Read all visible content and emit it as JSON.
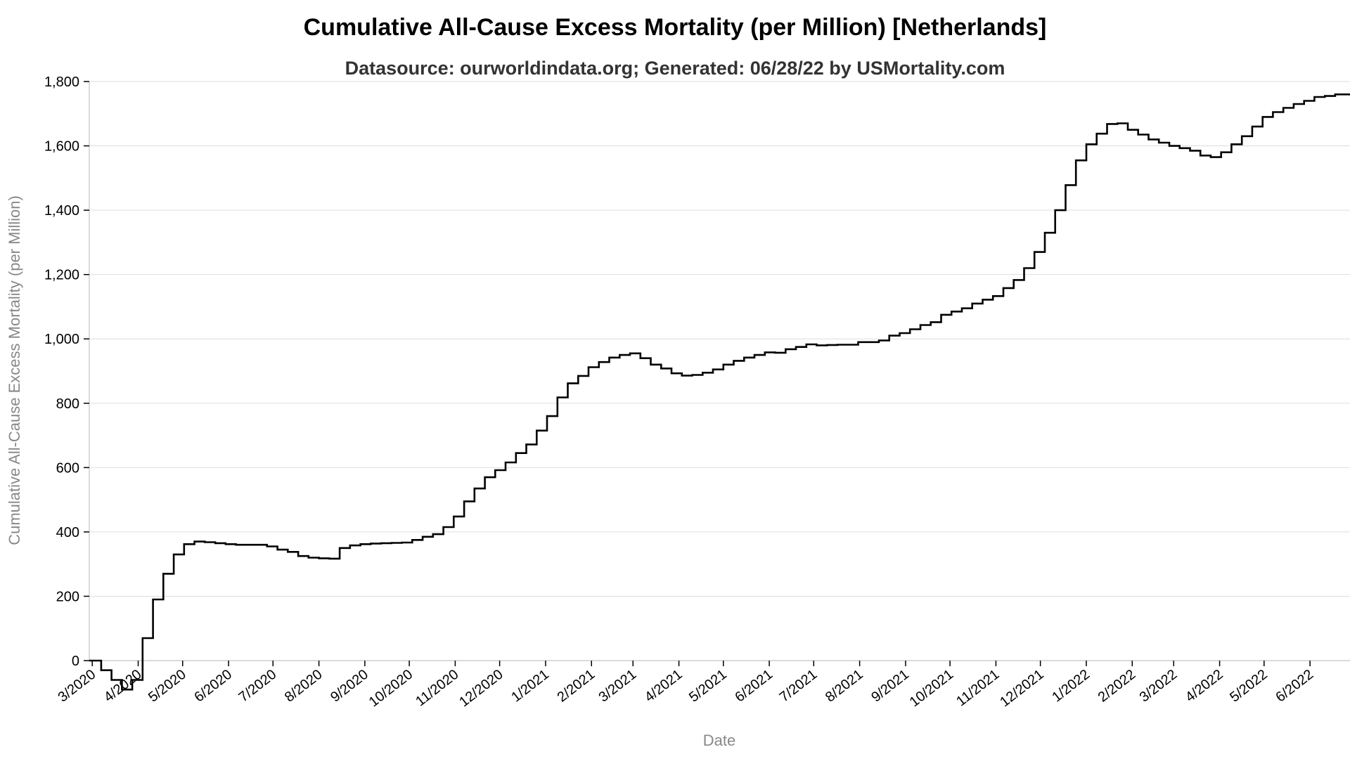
{
  "chart_data": {
    "type": "line",
    "title": "Cumulative All-Cause Excess Mortality (per Million) [Netherlands]",
    "subtitle": "Datasource: ourworldindata.org; Generated: 06/28/22 by USMortality.com",
    "xlabel": "Date",
    "ylabel": "Cumulative All-Cause Excess Mortality (per Million)",
    "ylim": [
      0,
      1800
    ],
    "yticks": [
      0,
      200,
      400,
      600,
      800,
      1000,
      1200,
      1400,
      1600,
      1800
    ],
    "ytick_labels": [
      "0",
      "200",
      "400",
      "600",
      "800",
      "1,000",
      "1,200",
      "1,400",
      "1,600",
      "1,800"
    ],
    "xlim": [
      "2020-02-28",
      "2022-06-28"
    ],
    "xticks": [
      "2020-03-01",
      "2020-04-01",
      "2020-05-01",
      "2020-06-01",
      "2020-07-01",
      "2020-08-01",
      "2020-09-01",
      "2020-10-01",
      "2020-11-01",
      "2020-12-01",
      "2021-01-01",
      "2021-02-01",
      "2021-03-01",
      "2021-04-01",
      "2021-05-01",
      "2021-06-01",
      "2021-07-01",
      "2021-08-01",
      "2021-09-01",
      "2021-10-01",
      "2021-11-01",
      "2021-12-01",
      "2022-01-01",
      "2022-02-01",
      "2022-03-01",
      "2022-04-01",
      "2022-05-01",
      "2022-06-01"
    ],
    "xtick_labels": [
      "3/2020",
      "4/2020",
      "5/2020",
      "6/2020",
      "7/2020",
      "8/2020",
      "9/2020",
      "10/2020",
      "11/2020",
      "12/2020",
      "1/2021",
      "2/2021",
      "3/2021",
      "4/2021",
      "5/2021",
      "6/2021",
      "7/2021",
      "8/2021",
      "9/2021",
      "10/2021",
      "11/2021",
      "12/2021",
      "1/2022",
      "2/2022",
      "3/2022",
      "4/2022",
      "5/2022",
      "6/2022"
    ],
    "step": true,
    "grid": true,
    "series": [
      {
        "color": "#000000",
        "x": [
          "2020-02-28",
          "2020-03-07",
          "2020-03-14",
          "2020-03-21",
          "2020-03-28",
          "2020-04-04",
          "2020-04-11",
          "2020-04-18",
          "2020-04-25",
          "2020-05-02",
          "2020-05-09",
          "2020-05-16",
          "2020-05-23",
          "2020-05-30",
          "2020-06-06",
          "2020-06-13",
          "2020-06-20",
          "2020-06-27",
          "2020-07-04",
          "2020-07-11",
          "2020-07-18",
          "2020-07-25",
          "2020-08-01",
          "2020-08-08",
          "2020-08-15",
          "2020-08-22",
          "2020-08-29",
          "2020-09-05",
          "2020-09-12",
          "2020-09-19",
          "2020-09-26",
          "2020-10-03",
          "2020-10-10",
          "2020-10-17",
          "2020-10-24",
          "2020-10-31",
          "2020-11-07",
          "2020-11-14",
          "2020-11-21",
          "2020-11-28",
          "2020-12-05",
          "2020-12-12",
          "2020-12-19",
          "2020-12-26",
          "2021-01-02",
          "2021-01-09",
          "2021-01-16",
          "2021-01-23",
          "2021-01-30",
          "2021-02-06",
          "2021-02-13",
          "2021-02-20",
          "2021-02-27",
          "2021-03-06",
          "2021-03-13",
          "2021-03-20",
          "2021-03-27",
          "2021-04-03",
          "2021-04-10",
          "2021-04-17",
          "2021-04-24",
          "2021-05-01",
          "2021-05-08",
          "2021-05-15",
          "2021-05-22",
          "2021-05-29",
          "2021-06-05",
          "2021-06-12",
          "2021-06-19",
          "2021-06-26",
          "2021-07-03",
          "2021-07-10",
          "2021-07-17",
          "2021-07-24",
          "2021-07-31",
          "2021-08-07",
          "2021-08-14",
          "2021-08-21",
          "2021-08-28",
          "2021-09-04",
          "2021-09-11",
          "2021-09-18",
          "2021-09-25",
          "2021-10-02",
          "2021-10-09",
          "2021-10-16",
          "2021-10-23",
          "2021-10-30",
          "2021-11-06",
          "2021-11-13",
          "2021-11-20",
          "2021-11-27",
          "2021-12-04",
          "2021-12-11",
          "2021-12-18",
          "2021-12-25",
          "2022-01-01",
          "2022-01-08",
          "2022-01-15",
          "2022-01-22",
          "2022-01-29",
          "2022-02-05",
          "2022-02-12",
          "2022-02-19",
          "2022-02-26",
          "2022-03-05",
          "2022-03-12",
          "2022-03-19",
          "2022-03-26",
          "2022-04-02",
          "2022-04-09",
          "2022-04-16",
          "2022-04-23",
          "2022-04-30",
          "2022-05-07",
          "2022-05-14",
          "2022-05-21",
          "2022-05-28",
          "2022-06-04",
          "2022-06-11",
          "2022-06-18"
        ],
        "y": [
          0,
          -30,
          -60,
          -90,
          -60,
          70,
          190,
          270,
          330,
          362,
          370,
          368,
          365,
          362,
          360,
          360,
          360,
          355,
          345,
          338,
          325,
          320,
          318,
          317,
          350,
          358,
          362,
          364,
          365,
          366,
          367,
          375,
          385,
          393,
          415,
          448,
          495,
          535,
          570,
          592,
          616,
          645,
          672,
          715,
          760,
          818,
          862,
          885,
          912,
          928,
          942,
          950,
          955,
          940,
          920,
          908,
          893,
          886,
          888,
          895,
          905,
          920,
          932,
          942,
          950,
          958,
          957,
          968,
          975,
          983,
          980,
          981,
          982,
          982,
          990,
          990,
          995,
          1010,
          1018,
          1030,
          1043,
          1052,
          1075,
          1085,
          1095,
          1110,
          1122,
          1133,
          1158,
          1183,
          1220,
          1270,
          1330,
          1400,
          1478,
          1555,
          1605,
          1638,
          1668,
          1670,
          1650,
          1635,
          1620,
          1610,
          1600,
          1593,
          1585,
          1570,
          1565,
          1580,
          1605,
          1630,
          1660,
          1690,
          1705,
          1718,
          1730,
          1740,
          1752,
          1755,
          1760
        ]
      }
    ]
  }
}
